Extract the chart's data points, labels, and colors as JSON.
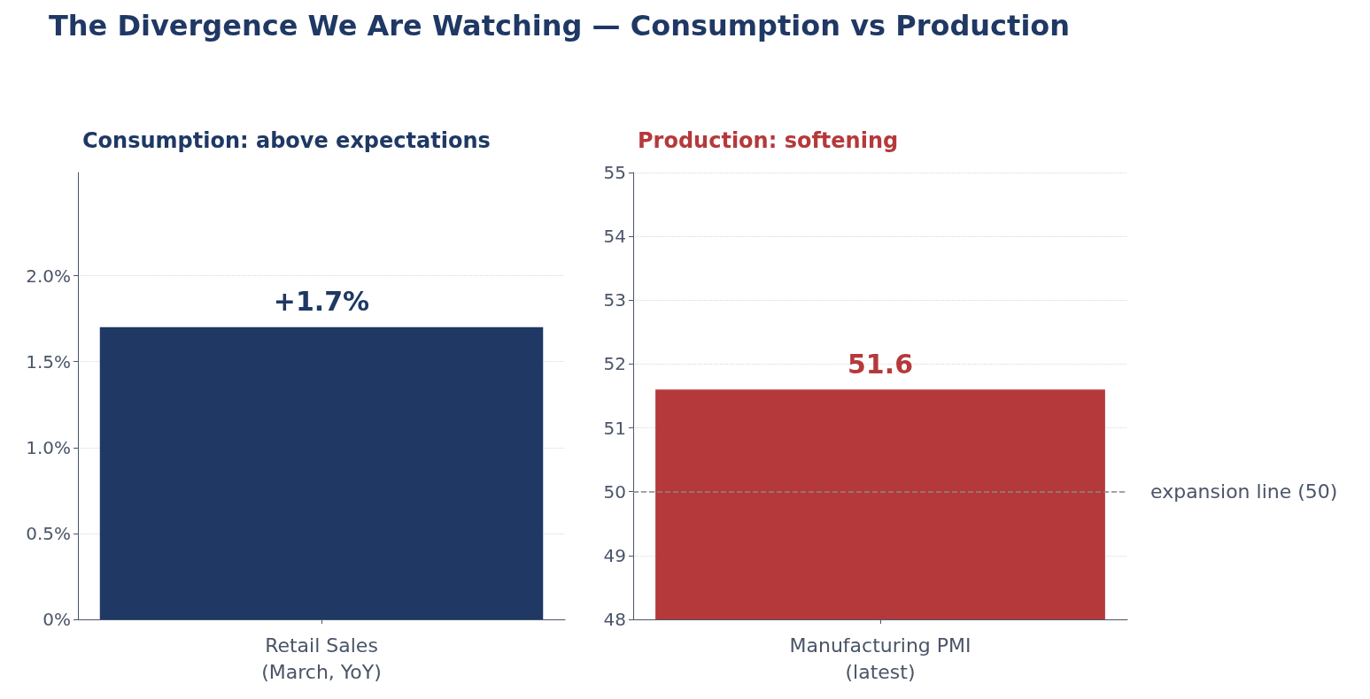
{
  "chart_data": [
    {
      "type": "bar",
      "title": "The Divergence We Are Watching — Consumption vs Production",
      "subtitle": "Consumption: above expectations",
      "categories": [
        "Retail Sales\n(March, YoY)"
      ],
      "series": [
        {
          "color": "#1f3864",
          "values": [
            1.7
          ],
          "value_labels": [
            "+1.7%"
          ]
        }
      ],
      "ylim": [
        0,
        2.6
      ],
      "yticks": [
        {
          "value": 0,
          "label": "0%"
        },
        {
          "value": 0.5,
          "label": "0.5%"
        },
        {
          "value": 1,
          "label": "1.0%"
        },
        {
          "value": 1.5,
          "label": "1.5%"
        },
        {
          "value": 2,
          "label": "2.0%"
        }
      ],
      "grid": "y"
    },
    {
      "type": "bar",
      "subtitle": "Production: softening",
      "categories": [
        "Manufacturing PMI\n(latest)"
      ],
      "series": [
        {
          "color": "#b5393b",
          "values": [
            51.6
          ]
        }
      ],
      "ylim": [
        48,
        55
      ],
      "yticks": [
        48,
        49,
        50,
        51,
        52,
        53,
        54,
        55
      ],
      "grid": "y",
      "data_labels": true,
      "ref_lines": [
        {
          "axis": "y",
          "value": 50,
          "label": "expansion line (50)",
          "color": "#888888",
          "line_style": "dashed"
        }
      ]
    }
  ]
}
